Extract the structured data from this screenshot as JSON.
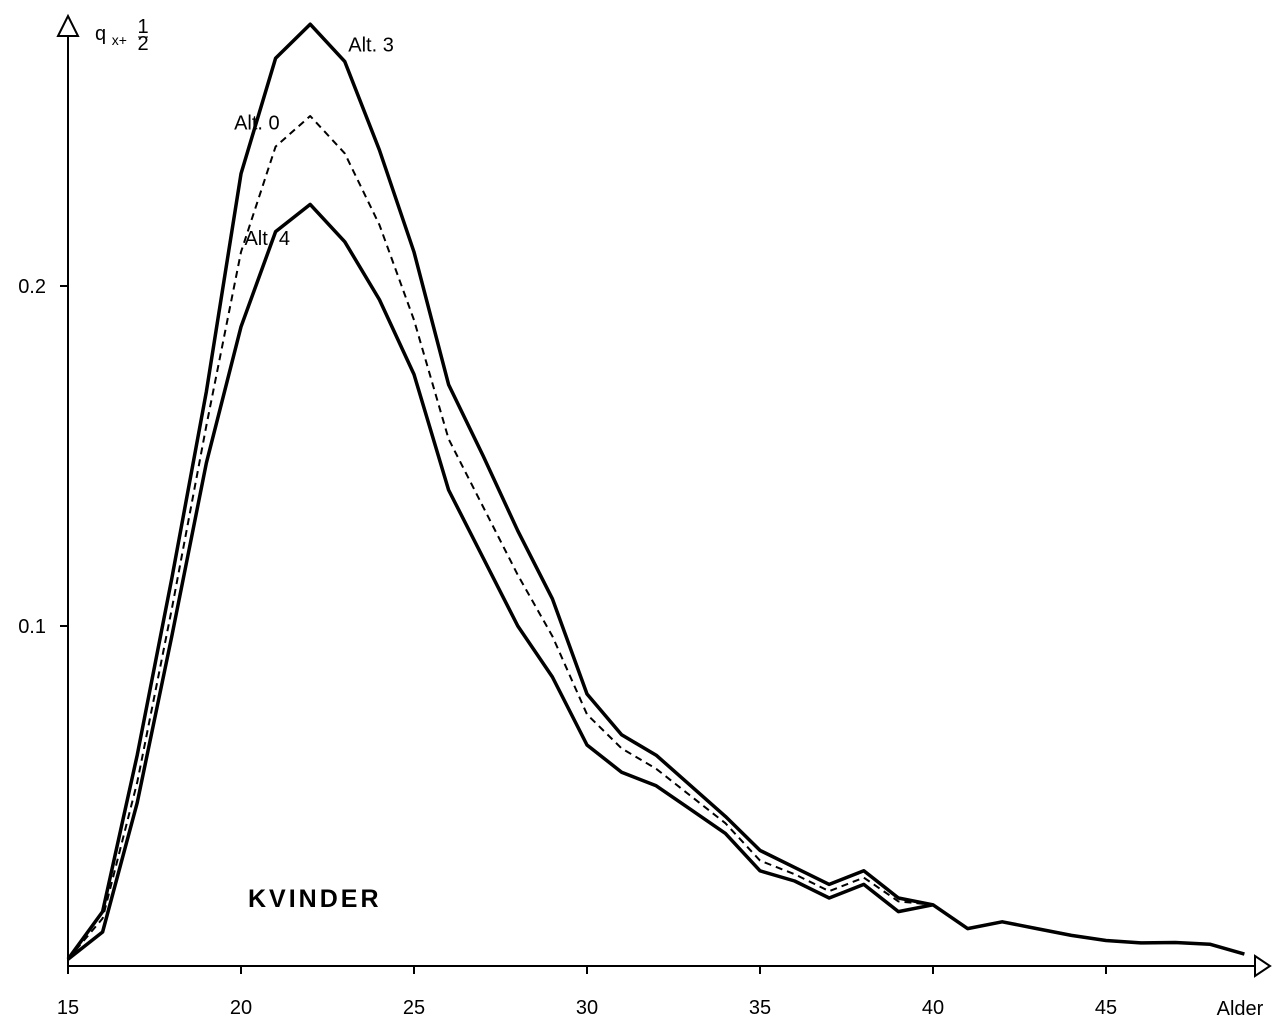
{
  "chart_data": {
    "type": "line",
    "title": "",
    "xlabel": "Alder",
    "ylabel_main": "q",
    "ylabel_sub": "x+",
    "ylabel_num": "1",
    "ylabel_den": "2",
    "xlim": [
      15,
      49.5
    ],
    "ylim": [
      0,
      0.27
    ],
    "x_ticks": [
      {
        "value": 15,
        "label": "15"
      },
      {
        "value": 20,
        "label": "20"
      },
      {
        "value": 25,
        "label": "25"
      },
      {
        "value": 30,
        "label": "30"
      },
      {
        "value": 35,
        "label": "35"
      },
      {
        "value": 40,
        "label": "40"
      },
      {
        "value": 45,
        "label": "45"
      }
    ],
    "y_ticks": [
      {
        "value": 0.1,
        "label": "0.1"
      },
      {
        "value": 0.2,
        "label": "0.2"
      }
    ],
    "annotation": "KVINDER",
    "grid": false,
    "series": [
      {
        "name": "Alt. 3",
        "style": "solid",
        "label_at": [
          23.1,
          0.269
        ],
        "x": [
          15,
          16,
          17,
          18,
          19,
          20,
          21,
          22,
          23,
          24,
          25,
          26,
          27,
          28,
          29,
          30,
          31,
          32,
          33,
          34,
          35,
          36,
          37,
          38,
          39,
          40,
          41,
          42,
          43,
          44,
          45,
          46,
          47,
          48,
          49
        ],
        "y": [
          0.002,
          0.016,
          0.062,
          0.114,
          0.169,
          0.233,
          0.267,
          0.277,
          0.266,
          0.24,
          0.21,
          0.171,
          0.15,
          0.128,
          0.108,
          0.08,
          0.068,
          0.062,
          0.053,
          0.044,
          0.034,
          0.029,
          0.024,
          0.028,
          0.02,
          0.018,
          0.011,
          0.013,
          0.011,
          0.009,
          0.0075,
          0.0068,
          0.0069,
          0.0064,
          0.0035
        ]
      },
      {
        "name": "Alt. 0",
        "style": "dashed",
        "label_at": [
          19.8,
          0.246
        ],
        "x": [
          15,
          16,
          17,
          18,
          19,
          20,
          21,
          22,
          23,
          24,
          25,
          26,
          27,
          28,
          29,
          30,
          31,
          32,
          33,
          34,
          35,
          36,
          37,
          38,
          39,
          40
        ],
        "y": [
          0.002,
          0.014,
          0.054,
          0.105,
          0.159,
          0.21,
          0.241,
          0.25,
          0.239,
          0.218,
          0.19,
          0.155,
          0.135,
          0.115,
          0.097,
          0.074,
          0.064,
          0.058,
          0.05,
          0.042,
          0.031,
          0.027,
          0.022,
          0.026,
          0.019,
          0.018
        ]
      },
      {
        "name": "Alt. 4",
        "style": "solid",
        "label_at": [
          20.1,
          0.212
        ],
        "x": [
          15,
          16,
          17,
          18,
          19,
          20,
          21,
          22,
          23,
          24,
          25,
          26,
          27,
          28,
          29,
          30,
          31,
          32,
          33,
          34,
          35,
          36,
          37,
          38,
          39,
          40
        ],
        "y": [
          0.002,
          0.01,
          0.048,
          0.097,
          0.148,
          0.188,
          0.216,
          0.224,
          0.213,
          0.196,
          0.174,
          0.14,
          0.12,
          0.1,
          0.085,
          0.065,
          0.057,
          0.053,
          0.046,
          0.039,
          0.028,
          0.025,
          0.02,
          0.024,
          0.016,
          0.018
        ]
      }
    ]
  }
}
